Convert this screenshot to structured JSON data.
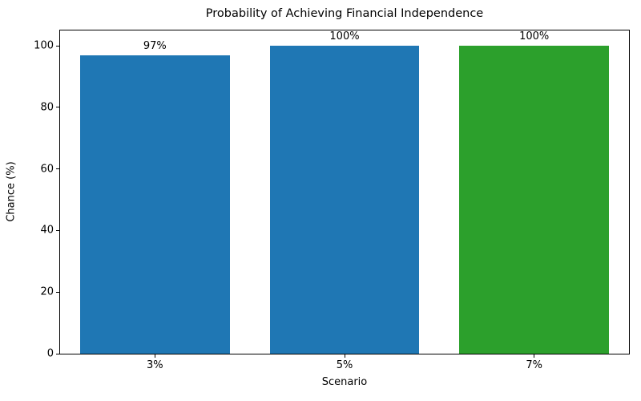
{
  "chart_data": {
    "type": "bar",
    "title": "Probability of Achieving Financial Independence",
    "xlabel": "Scenario",
    "ylabel": "Chance (%)",
    "categories": [
      "3%",
      "5%",
      "7%"
    ],
    "values": [
      97,
      100,
      100
    ],
    "bar_labels": [
      "97%",
      "100%",
      "100%"
    ],
    "bar_colors": [
      "#1f77b4",
      "#1f77b4",
      "#2ca02c"
    ],
    "ylim": [
      0,
      105
    ],
    "yticks": [
      0,
      20,
      40,
      60,
      80,
      100
    ],
    "bar_width_fraction": 0.79,
    "grid": false,
    "legend": "none",
    "background_color": "#ffffff",
    "axis_color": "#000000"
  }
}
